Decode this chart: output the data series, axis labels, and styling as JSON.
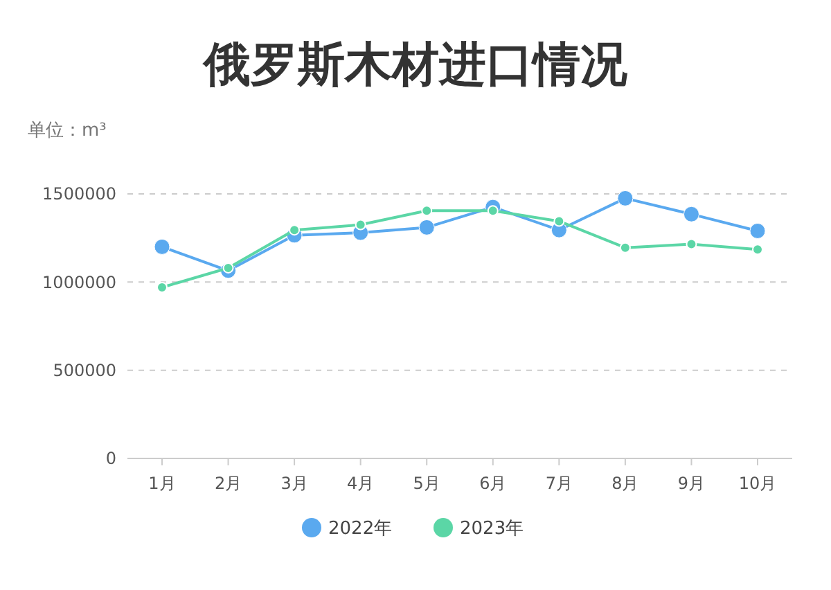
{
  "chart_data": {
    "type": "line",
    "title": "俄罗斯木材进口情况",
    "subtitle": "单位：m³",
    "categories": [
      "1月",
      "2月",
      "3月",
      "4月",
      "5月",
      "6月",
      "7月",
      "8月",
      "9月",
      "10月"
    ],
    "series": [
      {
        "name": "2022年",
        "color": "#5aa9ef",
        "values": [
          1200000,
          1065000,
          1265000,
          1280000,
          1310000,
          1425000,
          1295000,
          1475000,
          1385000,
          1290000
        ]
      },
      {
        "name": "2023年",
        "color": "#5bd6a6",
        "values": [
          970000,
          1080000,
          1295000,
          1325000,
          1405000,
          1405000,
          1345000,
          1195000,
          1215000,
          1185000
        ]
      }
    ],
    "ylim": [
      0,
      1500000
    ],
    "yticks": [
      0,
      500000,
      1000000,
      1500000
    ],
    "grid": "y",
    "legend": "bottom",
    "marker": "circle",
    "line_style": "solid"
  }
}
